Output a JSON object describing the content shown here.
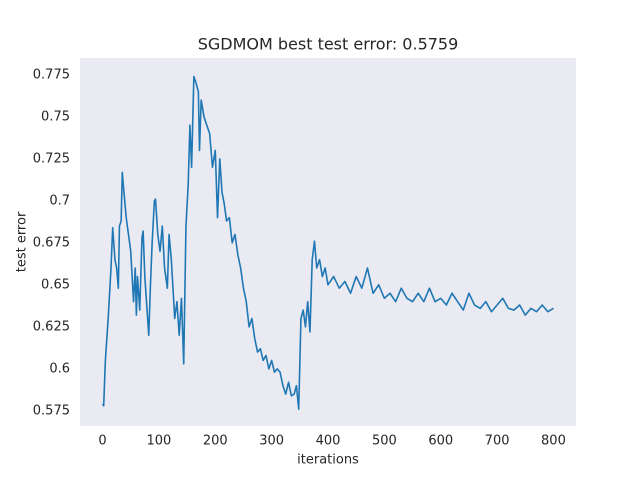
{
  "chart_data": {
    "type": "line",
    "title": "SGDMOM best test error: 0.5759",
    "x_label": "iterations",
    "y_label": "test error",
    "x": [
      0,
      2,
      5,
      10,
      15,
      18,
      22,
      25,
      28,
      30,
      33,
      35,
      38,
      42,
      46,
      50,
      55,
      58,
      60,
      62,
      66,
      70,
      72,
      75,
      78,
      82,
      85,
      88,
      92,
      94,
      98,
      102,
      106,
      110,
      115,
      118,
      122,
      126,
      128,
      132,
      136,
      140,
      144,
      148,
      152,
      155,
      158,
      162,
      166,
      170,
      172,
      175,
      180,
      185,
      190,
      195,
      200,
      204,
      208,
      212,
      216,
      220,
      225,
      230,
      235,
      240,
      245,
      250,
      255,
      260,
      265,
      270,
      275,
      280,
      285,
      290,
      295,
      300,
      305,
      310,
      315,
      320,
      325,
      330,
      335,
      340,
      344,
      348,
      352,
      356,
      360,
      364,
      368,
      372,
      376,
      380,
      385,
      390,
      395,
      400,
      410,
      420,
      430,
      440,
      450,
      460,
      470,
      480,
      490,
      500,
      510,
      520,
      530,
      540,
      550,
      560,
      570,
      580,
      590,
      600,
      610,
      620,
      630,
      640,
      650,
      660,
      670,
      680,
      690,
      700,
      710,
      720,
      730,
      740,
      750,
      760,
      770,
      780,
      790,
      800
    ],
    "series": [
      {
        "name": "test error",
        "color": "#1f77b4",
        "values": [
          0.579,
          0.578,
          0.605,
          0.63,
          0.66,
          0.684,
          0.665,
          0.66,
          0.648,
          0.685,
          0.688,
          0.717,
          0.705,
          0.69,
          0.68,
          0.67,
          0.64,
          0.66,
          0.632,
          0.655,
          0.635,
          0.678,
          0.682,
          0.655,
          0.64,
          0.62,
          0.65,
          0.675,
          0.7,
          0.701,
          0.68,
          0.67,
          0.685,
          0.66,
          0.648,
          0.68,
          0.665,
          0.642,
          0.63,
          0.64,
          0.62,
          0.642,
          0.603,
          0.685,
          0.71,
          0.745,
          0.72,
          0.774,
          0.77,
          0.765,
          0.73,
          0.76,
          0.75,
          0.745,
          0.74,
          0.72,
          0.73,
          0.69,
          0.725,
          0.705,
          0.698,
          0.688,
          0.69,
          0.675,
          0.68,
          0.668,
          0.66,
          0.648,
          0.64,
          0.625,
          0.63,
          0.618,
          0.61,
          0.612,
          0.605,
          0.608,
          0.6,
          0.605,
          0.598,
          0.6,
          0.598,
          0.59,
          0.585,
          0.592,
          0.584,
          0.585,
          0.59,
          0.576,
          0.63,
          0.635,
          0.625,
          0.64,
          0.622,
          0.665,
          0.676,
          0.66,
          0.665,
          0.655,
          0.66,
          0.65,
          0.655,
          0.648,
          0.652,
          0.645,
          0.655,
          0.648,
          0.66,
          0.645,
          0.65,
          0.642,
          0.645,
          0.64,
          0.648,
          0.642,
          0.64,
          0.645,
          0.64,
          0.648,
          0.64,
          0.642,
          0.638,
          0.645,
          0.64,
          0.635,
          0.645,
          0.638,
          0.636,
          0.64,
          0.634,
          0.638,
          0.642,
          0.636,
          0.635,
          0.638,
          0.632,
          0.636,
          0.634,
          0.638,
          0.634,
          0.636
        ]
      }
    ],
    "xlim": [
      -40,
      840
    ],
    "ylim": [
      0.566,
      0.785
    ],
    "xticks": [
      0,
      100,
      200,
      300,
      400,
      500,
      600,
      700,
      800
    ],
    "yticks": [
      0.575,
      0.6,
      0.625,
      0.65,
      0.675,
      0.7,
      0.725,
      0.75,
      0.775
    ],
    "plot_background": "#eaeaf2",
    "grid": false
  }
}
